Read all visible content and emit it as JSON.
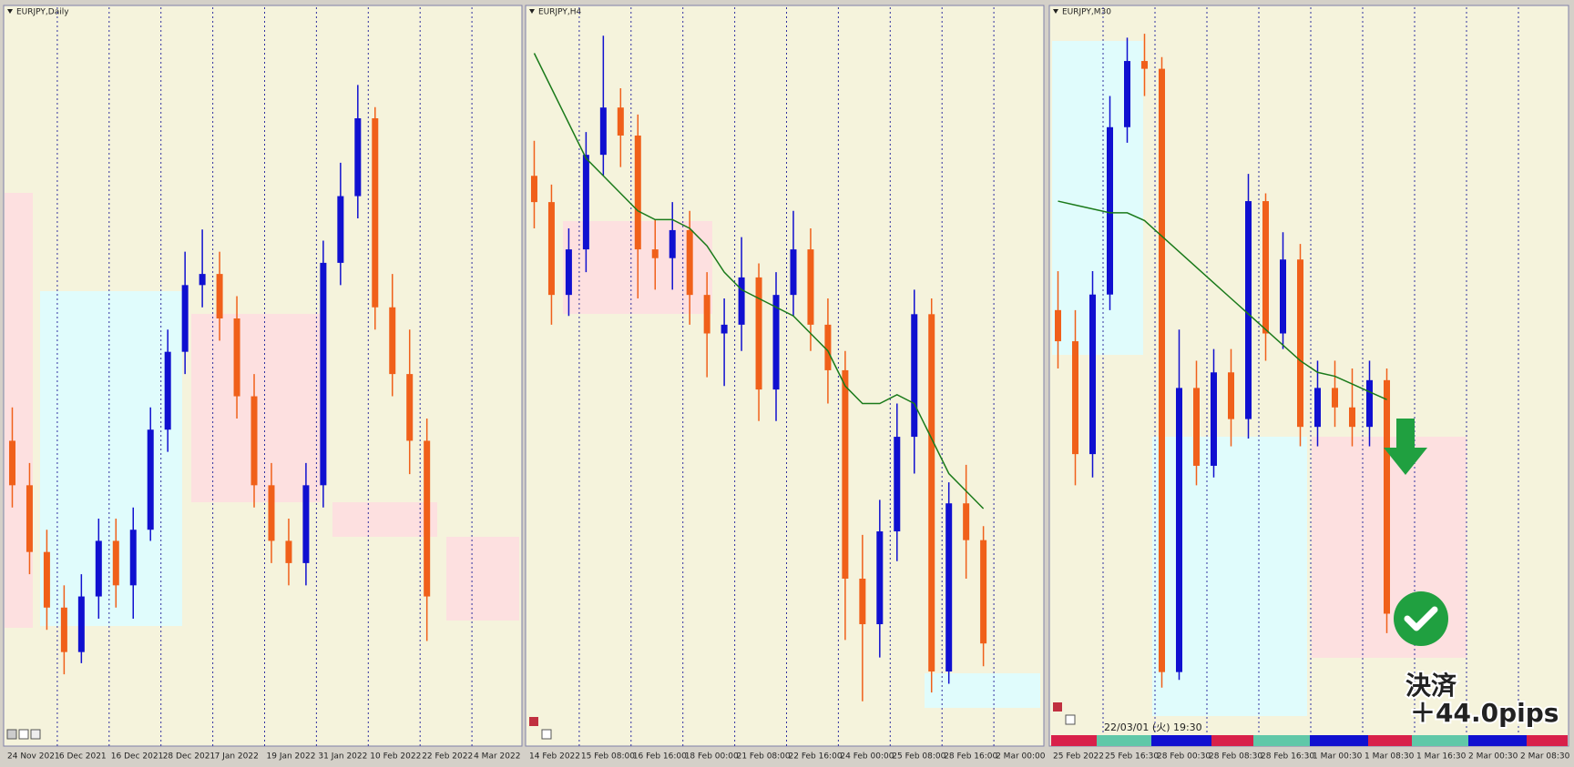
{
  "chart_data": [
    {
      "type": "candlestick",
      "title": "EURJPY,Daily",
      "up_color": "#1010d0",
      "down_color": "#f0601a",
      "ma_color": null,
      "ylim": [
        127.3,
        133.6
      ],
      "categories": [
        "24 Nov 2021",
        null,
        null,
        "6 Dec 2021",
        null,
        null,
        "16 Dec 2021",
        null,
        null,
        "28 Dec 2021",
        null,
        null,
        "7 Jan 2022",
        null,
        null,
        "19 Jan 2022",
        null,
        null,
        "31 Jan 2022",
        null,
        null,
        "10 Feb 2022",
        null,
        null,
        "22 Feb 2022",
        null,
        null,
        "4 Mar 2022",
        null,
        null
      ],
      "open": [
        129.8,
        129.4,
        128.8,
        128.3,
        127.9,
        128.4,
        128.9,
        128.5,
        129.0,
        129.9,
        130.6,
        131.2,
        131.3,
        130.9,
        130.2,
        129.4,
        128.9,
        128.7,
        129.4,
        131.4,
        132.0,
        132.7,
        131.0,
        130.4,
        129.8,
        null,
        null,
        null,
        null,
        null
      ],
      "high": [
        130.1,
        129.6,
        129.0,
        128.5,
        128.6,
        129.1,
        129.1,
        129.2,
        130.1,
        130.8,
        131.5,
        131.7,
        131.5,
        131.1,
        130.4,
        129.6,
        129.1,
        129.6,
        131.6,
        132.3,
        133.0,
        132.8,
        131.3,
        130.8,
        130.0,
        null,
        null,
        null,
        null,
        null
      ],
      "low": [
        129.2,
        128.6,
        128.1,
        127.7,
        127.8,
        128.2,
        128.3,
        128.2,
        128.9,
        129.7,
        130.4,
        131.0,
        130.7,
        130.0,
        129.2,
        128.7,
        128.5,
        128.5,
        129.2,
        131.2,
        131.8,
        130.8,
        130.2,
        129.5,
        128.0,
        null,
        null,
        null,
        null,
        null
      ],
      "close": [
        129.4,
        128.8,
        128.3,
        127.9,
        128.4,
        128.9,
        128.5,
        129.0,
        129.9,
        130.6,
        131.2,
        131.3,
        130.9,
        130.2,
        129.4,
        128.9,
        128.7,
        129.4,
        131.4,
        132.0,
        132.7,
        131.0,
        130.4,
        129.8,
        128.4,
        null,
        null,
        null,
        null,
        null
      ],
      "annotations": []
    },
    {
      "type": "candlestick",
      "title": "EURJPY,H4",
      "up_color": "#1010d0",
      "down_color": "#f0601a",
      "ma_color": "#1a7a1a",
      "ylim": [
        127.5,
        131.5
      ],
      "categories": [
        "14 Feb 2022",
        null,
        null,
        "15 Feb 08:00",
        null,
        null,
        "16 Feb 16:00",
        null,
        null,
        "18 Feb 00:00",
        null,
        null,
        "21 Feb 08:00",
        null,
        null,
        "22 Feb 16:00",
        null,
        null,
        "24 Feb 00:00",
        null,
        null,
        "25 Feb 08:00",
        null,
        null,
        "28 Feb 16:00",
        null,
        null,
        "2 Mar 00:00",
        null,
        null
      ],
      "open": [
        130.6,
        130.45,
        129.92,
        130.18,
        130.72,
        130.99,
        130.83,
        130.18,
        130.13,
        130.29,
        129.92,
        129.7,
        129.75,
        130.02,
        129.38,
        129.92,
        130.18,
        129.75,
        129.49,
        128.3,
        128.04,
        128.57,
        129.11,
        129.81,
        127.77,
        128.73,
        128.52,
        null,
        null,
        null
      ],
      "high": [
        130.8,
        130.55,
        130.3,
        130.85,
        131.4,
        131.1,
        130.95,
        130.35,
        130.45,
        130.4,
        130.05,
        129.9,
        130.25,
        130.1,
        130.05,
        130.4,
        130.3,
        129.9,
        129.6,
        128.55,
        128.75,
        129.3,
        129.95,
        129.9,
        128.85,
        128.95,
        128.6,
        null,
        null,
        null
      ],
      "low": [
        130.3,
        129.75,
        129.8,
        130.05,
        130.6,
        130.65,
        129.9,
        129.95,
        129.95,
        129.75,
        129.45,
        129.4,
        129.6,
        129.2,
        129.2,
        129.8,
        129.6,
        129.3,
        127.95,
        127.6,
        127.85,
        128.4,
        128.9,
        127.65,
        127.7,
        128.3,
        127.8,
        null,
        null,
        null
      ],
      "close": [
        130.45,
        129.92,
        130.18,
        130.72,
        130.99,
        130.83,
        130.18,
        130.13,
        130.29,
        129.92,
        129.7,
        129.75,
        130.02,
        129.38,
        129.92,
        130.18,
        129.75,
        129.49,
        128.3,
        128.04,
        128.57,
        129.11,
        129.81,
        127.77,
        128.73,
        128.52,
        127.93,
        null,
        null,
        null
      ],
      "ma": [
        131.3,
        131.1,
        130.9,
        130.7,
        130.6,
        130.5,
        130.4,
        130.35,
        130.35,
        130.3,
        130.2,
        130.05,
        129.95,
        129.9,
        129.85,
        129.8,
        129.7,
        129.6,
        129.4,
        129.3,
        129.3,
        129.35,
        129.3,
        129.1,
        128.9,
        128.8,
        128.7,
        null,
        null,
        null
      ],
      "annotations": []
    },
    {
      "type": "candlestick",
      "title": "EURJPY,M30",
      "up_color": "#1010d0",
      "down_color": "#f0601a",
      "ma_color": "#1a7a1a",
      "ylim": [
        127.8,
        129.6
      ],
      "categories": [
        "25 Feb 2022",
        null,
        null,
        "25 Feb 16:30",
        null,
        null,
        "28 Feb 00:30",
        null,
        null,
        "28 Feb 08:30",
        null,
        null,
        "28 Feb 16:30",
        null,
        null,
        "1 Mar 00:30",
        null,
        null,
        "1 Mar 08:30",
        null,
        null,
        "1 Mar 16:30",
        null,
        null,
        "2 Mar 00:30",
        null,
        null,
        "2 Mar 08:30",
        null,
        null
      ],
      "open": [
        128.85,
        128.77,
        128.48,
        128.89,
        129.32,
        129.49,
        129.47,
        127.92,
        128.65,
        128.45,
        128.69,
        128.57,
        129.13,
        128.79,
        128.98,
        128.55,
        128.65,
        128.6,
        128.55,
        128.67,
        null,
        null,
        null,
        null,
        null,
        null,
        null,
        null,
        null,
        null
      ],
      "high": [
        128.95,
        128.85,
        128.95,
        129.4,
        129.55,
        129.56,
        129.5,
        128.8,
        128.72,
        128.75,
        128.75,
        129.2,
        129.15,
        129.05,
        129.02,
        128.72,
        128.72,
        128.7,
        128.72,
        128.7,
        null,
        null,
        null,
        null,
        null,
        null,
        null,
        null,
        null,
        null
      ],
      "low": [
        128.7,
        128.4,
        128.42,
        128.85,
        129.28,
        129.4,
        127.88,
        127.9,
        128.4,
        128.42,
        128.5,
        128.52,
        128.72,
        128.75,
        128.5,
        128.5,
        128.55,
        128.5,
        128.5,
        128.02,
        null,
        null,
        null,
        null,
        null,
        null,
        null,
        null,
        null,
        null
      ],
      "close": [
        128.77,
        128.48,
        128.89,
        129.32,
        129.49,
        129.47,
        127.92,
        128.65,
        128.45,
        128.69,
        128.57,
        129.13,
        128.79,
        128.98,
        128.55,
        128.65,
        128.6,
        128.55,
        128.67,
        128.07,
        null,
        null,
        null,
        null,
        null,
        null,
        null,
        null,
        null,
        null
      ],
      "ma": [
        129.13,
        129.12,
        129.11,
        129.1,
        129.1,
        129.08,
        129.04,
        129.0,
        128.96,
        128.92,
        128.88,
        128.84,
        128.8,
        128.76,
        128.72,
        128.69,
        128.68,
        128.66,
        128.64,
        128.62,
        null,
        null,
        null,
        null,
        null,
        null,
        null,
        null,
        null,
        null
      ],
      "annotations": [
        "22/03/01 (火) 19:30",
        "決済",
        "＋44.0pips"
      ]
    }
  ]
}
